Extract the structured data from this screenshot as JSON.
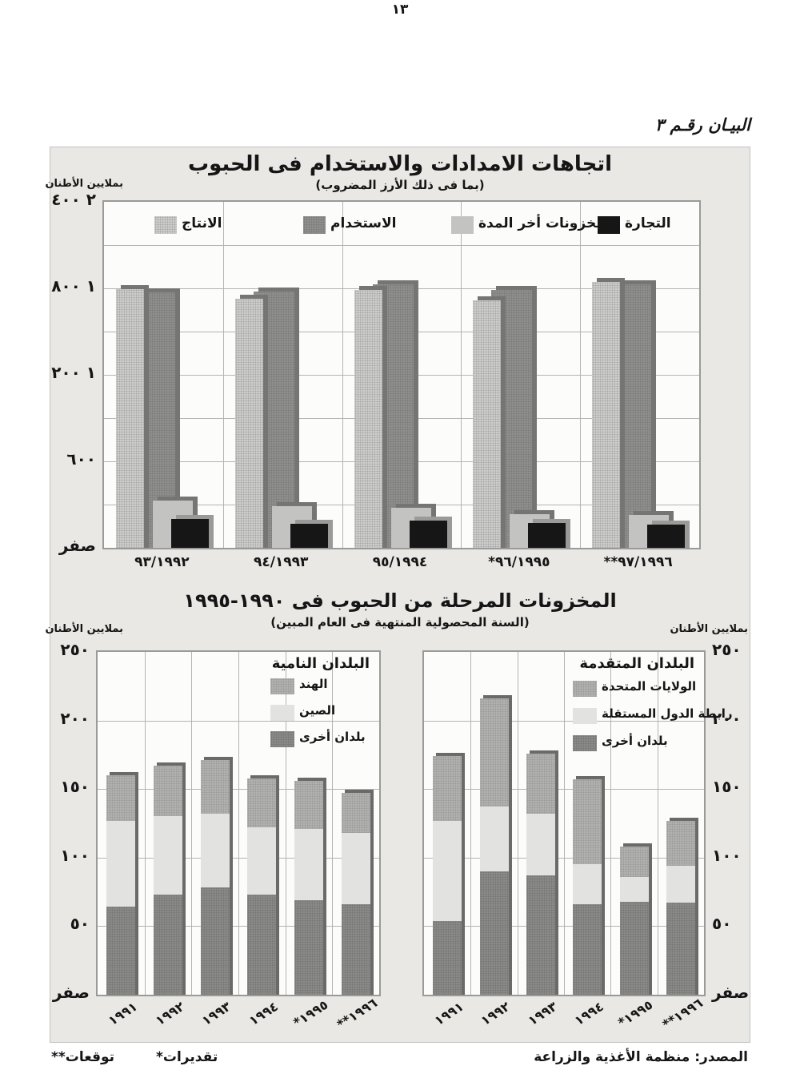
{
  "page": {
    "number": "١٣",
    "caption": "البيـان رقـم ٣",
    "footer": {
      "source": "المصدر: منظمة الأغذية والزراعة",
      "estimates": "*تقديرات",
      "forecasts": "**توقعات"
    }
  },
  "stocks_section": {
    "title": "المخزونات المرحلة من الحبوب فى ١٩٩٠-١٩٩٥",
    "subtitle": "(السنة المحصولية المنتهية فى العام المبين)"
  },
  "colors": {
    "panel_bg": "#e9e8e5",
    "plot_bg": "#fcfcfa",
    "grid": "#b4b4b2",
    "production": "#cdcdcb",
    "production_dot": "#a6a6a4",
    "utilization": "#8f8f8d",
    "utilization_dot": "#7b7b79",
    "stocks": "#c3c3c1",
    "trade": "#161616",
    "shadow_dark": "#757573",
    "shadow_on_black": "#9a9a98",
    "india_us": "#b1b1af",
    "india_us_dot": "#9b9b99",
    "china_cis": "#e2e2e0",
    "other": "#8a8a88",
    "other_dot": "#767674",
    "stack_shadow": "#6a6a68"
  },
  "chart_data": [
    {
      "id": "cereal-supply-use",
      "type": "bar",
      "title": "اتجاهات الامدادات والاستخدام فى الحبوب",
      "subtitle": "(بما فى ذلك الأرز المضروب)",
      "unit_label": "بملايين الأطنان",
      "ylim": [
        0,
        2400
      ],
      "grid_step": 300,
      "legend_position": "top",
      "y_ticks": [
        {
          "v": 2400,
          "label": "٢ ٤٠٠"
        },
        {
          "v": 1800,
          "label": "١ ٨٠٠"
        },
        {
          "v": 1200,
          "label": "١ ٢٠٠"
        },
        {
          "v": 600,
          "label": "٦٠٠"
        },
        {
          "v": 0,
          "label": "صفر"
        }
      ],
      "categories": [
        "٩٣/١٩٩٢",
        "٩٤/١٩٩٣",
        "٩٥/١٩٩٤",
        "*٩٦/١٩٩٥",
        "**٩٧/١٩٩٦"
      ],
      "series": [
        {
          "name": "الانتاج",
          "key": "production",
          "values": [
            1795,
            1730,
            1790,
            1715,
            1845
          ]
        },
        {
          "name": "الاستخدام",
          "key": "utilization",
          "values": [
            1775,
            1778,
            1830,
            1790,
            1830
          ]
        },
        {
          "name": "مخزونات أخر المدة",
          "key": "stocks",
          "values": [
            330,
            290,
            280,
            235,
            230
          ]
        },
        {
          "name": "التجارة",
          "key": "trade",
          "values": [
            200,
            165,
            190,
            170,
            160
          ]
        }
      ]
    },
    {
      "id": "stocks-developing",
      "type": "stacked-bar",
      "legend_title": "البلدان النامية",
      "unit_label": "بملايين الأطنان",
      "ylim": [
        0,
        250
      ],
      "grid_step": 50,
      "y_ticks": [
        {
          "v": 250,
          "label": "٢٥٠"
        },
        {
          "v": 200,
          "label": "٢٠٠"
        },
        {
          "v": 150,
          "label": "١٥٠"
        },
        {
          "v": 100,
          "label": "١٠٠"
        },
        {
          "v": 50,
          "label": "٥٠"
        },
        {
          "v": 0,
          "label": "صفر"
        }
      ],
      "categories": [
        "١٩٩١",
        "١٩٩٢",
        "١٩٩٣",
        "١٩٩٤",
        "*١٩٩٥",
        "**١٩٩٦"
      ],
      "series": [
        {
          "name": "الهند",
          "key": "india_us",
          "values": [
            33,
            37,
            39,
            36,
            35,
            29
          ]
        },
        {
          "name": "الصين",
          "key": "china_cis",
          "values": [
            63,
            57,
            54,
            49,
            52,
            52
          ]
        },
        {
          "name": "بلدان أخرى",
          "key": "other",
          "values": [
            64,
            73,
            78,
            73,
            69,
            66
          ]
        }
      ]
    },
    {
      "id": "stocks-developed",
      "type": "stacked-bar",
      "legend_title": "البلدان المتقدمة",
      "unit_label": "بملايين الأطنان",
      "ylim": [
        0,
        250
      ],
      "grid_step": 50,
      "y_ticks": [
        {
          "v": 250,
          "label": "٢٥٠"
        },
        {
          "v": 200,
          "label": "٢٠٠"
        },
        {
          "v": 150,
          "label": "١٥٠"
        },
        {
          "v": 100,
          "label": "١٠٠"
        },
        {
          "v": 50,
          "label": "٥٠"
        },
        {
          "v": 0,
          "label": "صفر"
        }
      ],
      "categories": [
        "١٩٩١",
        "١٩٩٢",
        "١٩٩٣",
        "١٩٩٤",
        "*١٩٩٥",
        "**١٩٩٦"
      ],
      "series": [
        {
          "name": "الولايات المتحدة",
          "key": "india_us",
          "values": [
            47,
            79,
            44,
            62,
            22,
            33
          ]
        },
        {
          "name": "رابطة الدول المستقلة",
          "key": "china_cis",
          "values": [
            73,
            47,
            45,
            29,
            18,
            27
          ]
        },
        {
          "name": "بلدان أخرى",
          "key": "other",
          "values": [
            54,
            90,
            87,
            66,
            68,
            67
          ]
        }
      ]
    }
  ]
}
